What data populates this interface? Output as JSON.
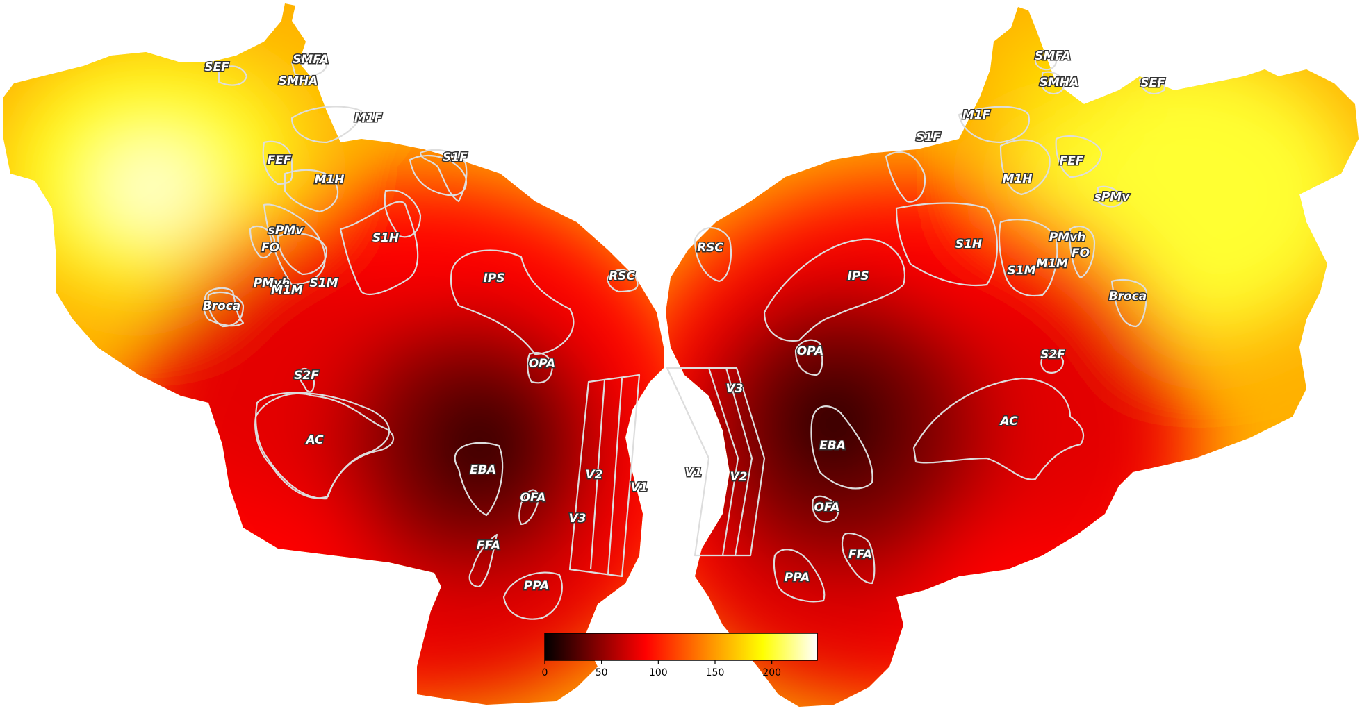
{
  "colors": {
    "colormap": [
      "#000000",
      "#8b0000",
      "#ff0000",
      "#ff8c00",
      "#ffff00",
      "#ffffff"
    ],
    "outline": "#dddddd",
    "label_fill": "#ffffff",
    "label_stroke": "#333333",
    "background": "#ffffff"
  },
  "colorbar": {
    "colormap_name": "hot",
    "min": 0,
    "max": 240,
    "ticks": [
      "0",
      "50",
      "100",
      "150",
      "200"
    ]
  },
  "left_hemisphere": {
    "labels": [
      "SEF",
      "SMFA",
      "SMHA",
      "M1F",
      "S1F",
      "FEF",
      "M1H",
      "sPMv",
      "FO",
      "S1H",
      "PMvh",
      "M1M",
      "S1M",
      "Broca",
      "IPS",
      "RSC",
      "OPA",
      "S2F",
      "AC",
      "EBA",
      "V2",
      "V1",
      "OFA",
      "V3",
      "FFA",
      "PPA"
    ]
  },
  "right_hemisphere": {
    "labels": [
      "SMFA",
      "SMHA",
      "SEF",
      "M1F",
      "S1F",
      "FEF",
      "M1H",
      "sPMv",
      "RSC",
      "PMvh",
      "FO",
      "S1H",
      "IPS",
      "S1M",
      "M1M",
      "Broca",
      "OPA",
      "S2F",
      "V3",
      "AC",
      "EBA",
      "V1",
      "V2",
      "OFA",
      "FFA",
      "PPA"
    ]
  }
}
